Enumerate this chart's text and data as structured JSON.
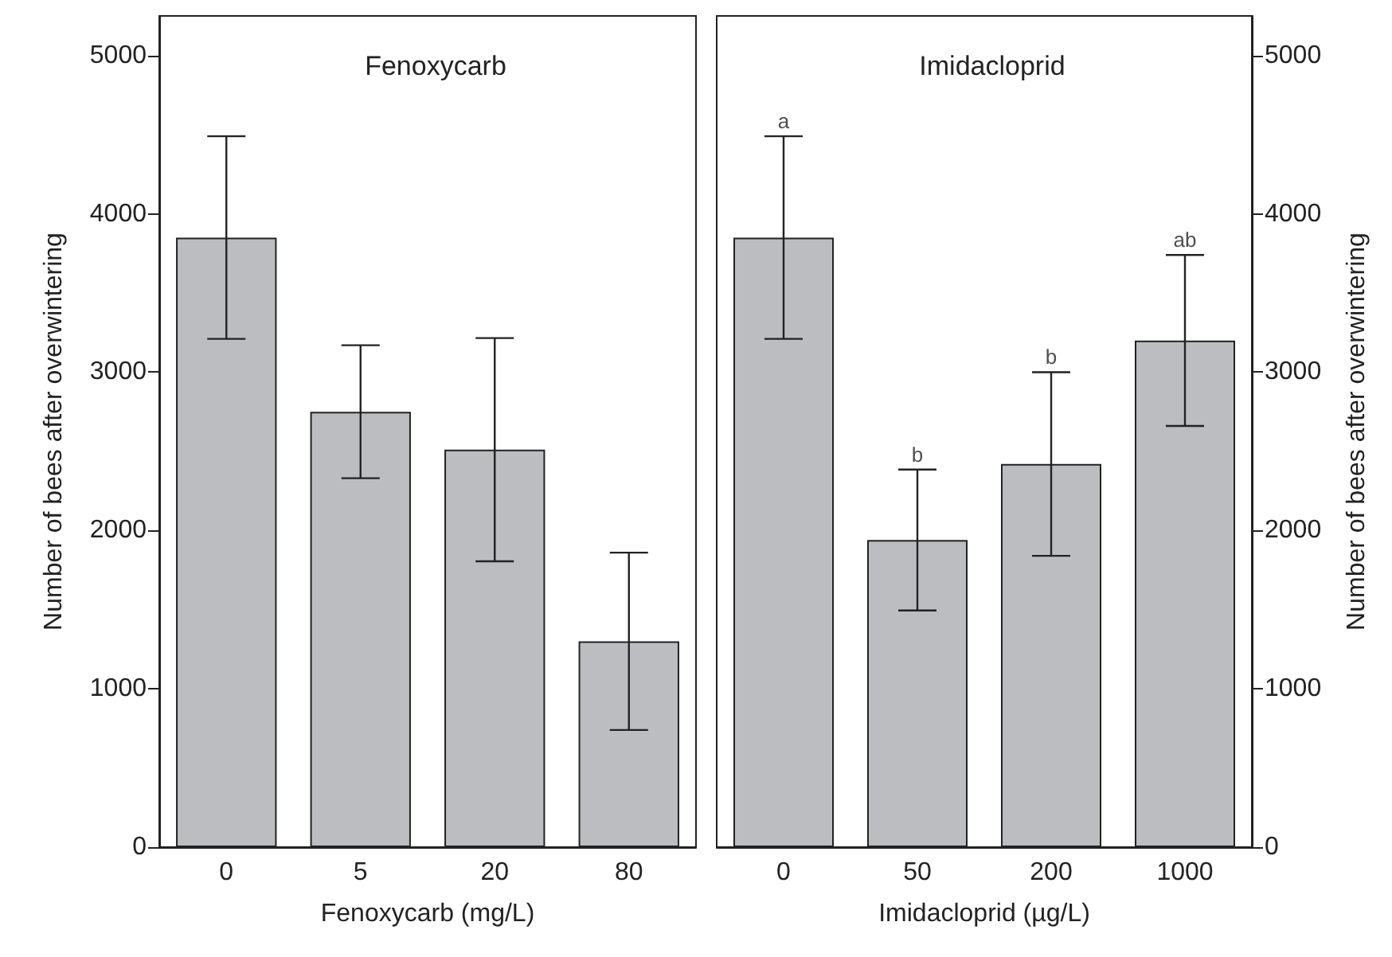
{
  "chart_data": [
    {
      "type": "bar",
      "title": "Fenoxycarb",
      "xlabel": "Fenoxycarb (mg/L)",
      "ylabel": "Number of bees after overwintering",
      "categories": [
        "0",
        "5",
        "20",
        "80"
      ],
      "values": [
        3850,
        2750,
        2510,
        1300
      ],
      "errors": [
        640,
        420,
        705,
        560
      ],
      "color": "#bcbdc1",
      "ylim": [
        0,
        5250
      ],
      "yticks": [
        0,
        1000,
        2000,
        3000,
        4000,
        5000
      ],
      "grid": false
    },
    {
      "type": "bar",
      "title": "Imidacloprid",
      "xlabel": "Imidacloprid (µg/L)",
      "ylabel": "Number of bees after overwintering",
      "categories": [
        "0",
        "50",
        "200",
        "1000"
      ],
      "values": [
        3850,
        1940,
        2420,
        3200
      ],
      "errors": [
        640,
        445,
        580,
        540
      ],
      "color": "#bcbdc1",
      "ylim": [
        0,
        5250
      ],
      "yticks": [
        0,
        1000,
        2000,
        3000,
        4000,
        5000
      ],
      "grid": false,
      "annotations": [
        {
          "text": "a",
          "x": "0",
          "y": 4490
        },
        {
          "text": "b",
          "x": "50",
          "y": 2385
        },
        {
          "text": "b",
          "x": "200",
          "y": 3000
        },
        {
          "text": "ab",
          "x": "1000",
          "y": 3740
        }
      ]
    }
  ]
}
